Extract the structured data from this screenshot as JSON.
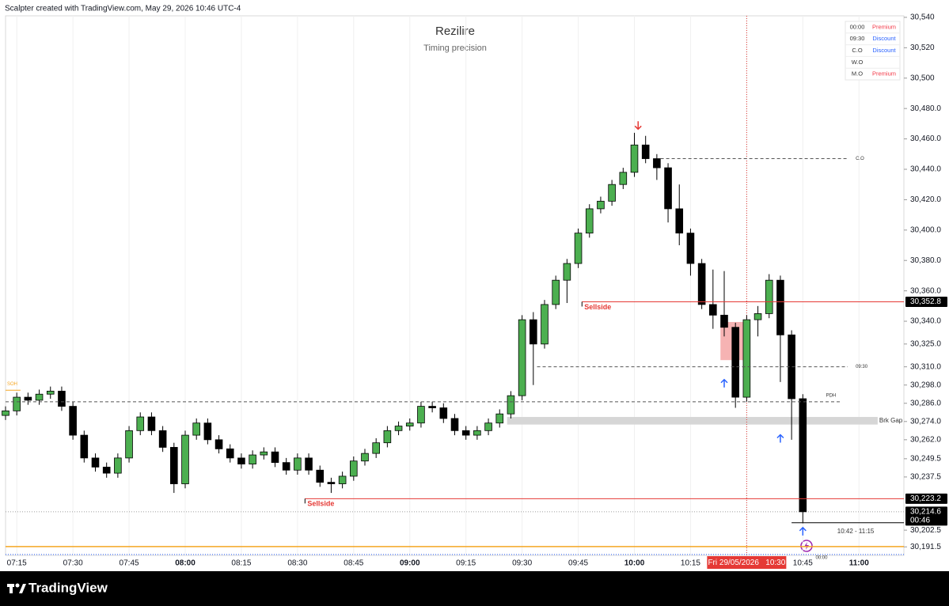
{
  "header": {
    "text": "Scalpter created with TradingView.com, May 29, 2026 10:46 UTC-4"
  },
  "footer": {
    "brand": "TradingView"
  },
  "chart_data": {
    "type": "candlestick",
    "title": "Rezilire",
    "subtitle": "Timing precision",
    "up_color": "#4caf50",
    "down_color": "#000000",
    "x": [
      "07:12",
      "07:15",
      "07:18",
      "07:21",
      "07:24",
      "07:27",
      "07:30",
      "07:33",
      "07:36",
      "07:39",
      "07:42",
      "07:45",
      "07:48",
      "07:51",
      "07:54",
      "07:57",
      "08:00",
      "08:03",
      "08:06",
      "08:09",
      "08:12",
      "08:15",
      "08:18",
      "08:21",
      "08:24",
      "08:27",
      "08:30",
      "08:33",
      "08:36",
      "08:39",
      "08:42",
      "08:45",
      "08:48",
      "08:51",
      "08:54",
      "08:57",
      "09:00",
      "09:03",
      "09:06",
      "09:09",
      "09:12",
      "09:15",
      "09:18",
      "09:21",
      "09:24",
      "09:27",
      "09:30",
      "09:33",
      "09:36",
      "09:39",
      "09:42",
      "09:45",
      "09:48",
      "09:51",
      "09:54",
      "09:57",
      "10:00",
      "10:03",
      "10:06",
      "10:09",
      "10:12",
      "10:15",
      "10:18",
      "10:21",
      "10:24",
      "10:27",
      "10:30",
      "10:33",
      "10:36",
      "10:39",
      "10:42",
      "10:45"
    ],
    "open": [
      30278,
      30281,
      30290,
      30288,
      30292,
      30294,
      30284,
      30265,
      30250,
      30244,
      30240,
      30250,
      30268,
      30277,
      30268,
      30257,
      30233,
      30265,
      30273,
      30262,
      30256,
      30250,
      30246,
      30252,
      30254,
      30247,
      30242,
      30250,
      30242,
      30234,
      30233,
      30238,
      30248,
      30253,
      30260,
      30268,
      30271,
      30273,
      30284,
      30283,
      30276,
      30268,
      30265,
      30268,
      30273,
      30279,
      30291,
      30341,
      30325,
      30351,
      30367,
      30378,
      30398,
      30414,
      30419,
      30430,
      30438,
      30456,
      30447,
      30441,
      30414,
      30398,
      30378,
      30351,
      30344,
      30336,
      30290,
      30341,
      30345,
      30367,
      30331,
      30289
    ],
    "high": [
      30284,
      30293,
      30293,
      30295,
      30297,
      30297,
      30287,
      30268,
      30253,
      30247,
      30253,
      30271,
      30280,
      30280,
      30271,
      30260,
      30268,
      30276,
      30276,
      30265,
      30259,
      30253,
      30255,
      30257,
      30257,
      30250,
      30253,
      30253,
      30245,
      30237,
      30241,
      30251,
      30256,
      30263,
      30271,
      30274,
      30276,
      30287,
      30287,
      30286,
      30279,
      30271,
      30271,
      30276,
      30282,
      30294,
      30344,
      30346,
      30354,
      30370,
      30381,
      30401,
      30417,
      30422,
      30433,
      30441,
      30464,
      30462,
      30450,
      30444,
      30430,
      30401,
      30381,
      30374,
      30373,
      30339,
      30344,
      30350,
      30371,
      30370,
      30334,
      30292
    ],
    "low": [
      30275,
      30278,
      30285,
      30285,
      30289,
      30281,
      30262,
      30247,
      30241,
      30237,
      30237,
      30247,
      30265,
      30265,
      30254,
      30227,
      30230,
      30262,
      30259,
      30253,
      30247,
      30243,
      30243,
      30249,
      30244,
      30239,
      30239,
      30239,
      30231,
      30227,
      30230,
      30235,
      30245,
      30250,
      30257,
      30265,
      30268,
      30270,
      30280,
      30273,
      30265,
      30262,
      30262,
      30265,
      30270,
      30276,
      30288,
      30298,
      30322,
      30348,
      30352,
      30375,
      30395,
      30411,
      30416,
      30427,
      30435,
      30444,
      30433,
      30405,
      30390,
      30370,
      30348,
      30335,
      30330,
      30283,
      30287,
      30330,
      30342,
      30300,
      30262,
      30207
    ],
    "close": [
      30281,
      30290,
      30288,
      30292,
      30294,
      30284,
      30265,
      30250,
      30244,
      30240,
      30250,
      30268,
      30277,
      30268,
      30257,
      30233,
      30265,
      30273,
      30262,
      30256,
      30250,
      30246,
      30252,
      30254,
      30247,
      30242,
      30250,
      30242,
      30234,
      30233,
      30238,
      30248,
      30253,
      30260,
      30268,
      30271,
      30273,
      30284,
      30283,
      30276,
      30268,
      30265,
      30268,
      30273,
      30279,
      30291,
      30341,
      30325,
      30351,
      30367,
      30378,
      30398,
      30414,
      30419,
      30430,
      30438,
      30456,
      30447,
      30441,
      30414,
      30398,
      30378,
      30351,
      30344,
      30336,
      30290,
      30341,
      30345,
      30367,
      30331,
      30289,
      30214.6
    ],
    "xlim": [
      "07:12",
      "11:12"
    ],
    "xticks": [
      "07:15",
      "07:30",
      "07:45",
      "08:00",
      "08:15",
      "08:30",
      "08:45",
      "09:00",
      "09:15",
      "09:30",
      "09:45",
      "10:00",
      "10:15",
      "10:30",
      "10:45",
      "11:00"
    ],
    "ylim": [
      30185.9,
      30541
    ],
    "yticks": [
      {
        "value": 30540,
        "label": "30,540"
      },
      {
        "value": 30520,
        "label": "30,520"
      },
      {
        "value": 30500,
        "label": "30,500"
      },
      {
        "value": 30480,
        "label": "30,480.0"
      },
      {
        "value": 30460,
        "label": "30,460.0"
      },
      {
        "value": 30440,
        "label": "30,440.0"
      },
      {
        "value": 30420,
        "label": "30,420.0"
      },
      {
        "value": 30400,
        "label": "30,400.0"
      },
      {
        "value": 30380,
        "label": "30,380.0"
      },
      {
        "value": 30360,
        "label": "30,360.0"
      },
      {
        "value": 30340,
        "label": "30,340.0"
      },
      {
        "value": 30325,
        "label": "30,325.0"
      },
      {
        "value": 30310,
        "label": "30,310.0"
      },
      {
        "value": 30298,
        "label": "30,298.0"
      },
      {
        "value": 30286,
        "label": "30,286.0"
      },
      {
        "value": 30274,
        "label": "30,274.0"
      },
      {
        "value": 30262,
        "label": "30,262.0"
      },
      {
        "value": 30249.5,
        "label": "30,249.5"
      },
      {
        "value": 30237.5,
        "label": "30,237.5"
      },
      {
        "value": 30202.5,
        "label": "30,202.5"
      },
      {
        "value": 30191.5,
        "label": "30,191.5"
      }
    ],
    "grid": true,
    "levels": [
      {
        "label": "Sellside",
        "value": 30352.8,
        "start": "09:46",
        "style": "solid",
        "color": "#e53935"
      },
      {
        "label": "Sellside",
        "value": 30223.2,
        "start": "08:32",
        "style": "solid",
        "color": "#e53935"
      },
      {
        "label": "C.O",
        "value": 30447,
        "start": "10:07",
        "end": "10:57",
        "style": "dashed",
        "color": "#555555"
      },
      {
        "label": "09:30",
        "value": 30310,
        "start": "09:34",
        "end": "10:57",
        "style": "dashed",
        "color": "#555555"
      },
      {
        "label": "PDH",
        "value": 30287,
        "start": "07:12",
        "end": "10:55",
        "style": "dashed",
        "color": "#555555"
      },
      {
        "label": "SOH",
        "value": 30294.6,
        "start": "07:12",
        "end": "07:16",
        "style": "solid",
        "color": "#f5a623"
      },
      {
        "label": "10:42 - 11:15",
        "value": 30207.4,
        "start": "10:42",
        "end": "11:12",
        "style": "solid",
        "color": "#000000"
      }
    ],
    "lines": [
      {
        "value": 30191.7,
        "color": "#f5a623",
        "style": "solid"
      },
      {
        "value": 30186.5,
        "color": "#2962ff",
        "style": "dotted"
      },
      {
        "value": 30214.6,
        "color": "#9e9e9e",
        "style": "dotted"
      }
    ],
    "gap": {
      "label": "Brk Gap",
      "top": 30277,
      "bottom": 30272,
      "start": "09:26",
      "end": "11:05"
    },
    "box": {
      "top": 30339.5,
      "bottom": 30314.4,
      "start": "10:23",
      "end": "10:30",
      "color": "#f4a6a6"
    },
    "arrows": [
      {
        "direction": "down",
        "time": "10:01",
        "value": 30469,
        "color": "#e53935"
      },
      {
        "direction": "up",
        "time": "10:24",
        "value": 30299,
        "color": "#2962ff"
      },
      {
        "direction": "up",
        "time": "10:39",
        "value": 30262.7,
        "color": "#2962ff"
      },
      {
        "direction": "up",
        "time": "10:45",
        "value": 30201.6,
        "color": "#2962ff"
      }
    ],
    "price_labels": [
      {
        "label": "30,352.8",
        "value": 30352.8
      },
      {
        "label": "30,223.2",
        "value": 30223.2
      },
      {
        "label": "30,214.6",
        "value": 30214.6,
        "countdown": "00:46"
      }
    ],
    "crosshair": {
      "time": "10:30",
      "label": "Fri 29/05/2026   10:30",
      "color": "#e53935"
    },
    "note": {
      "label": "00:00",
      "time": "10:50",
      "value": 30186
    },
    "table": {
      "rows": [
        {
          "cells": [
            "00:00",
            "Premium"
          ],
          "color": "#f23645"
        },
        {
          "cells": [
            "09:30",
            "Discount"
          ],
          "color": "#2962ff"
        },
        {
          "cells": [
            "C.O",
            "Discount"
          ],
          "color": "#2962ff"
        },
        {
          "cells": [
            "W.O"
          ]
        },
        {
          "cells": [
            "M.O",
            "Premium"
          ],
          "color": "#f23645"
        }
      ]
    }
  }
}
